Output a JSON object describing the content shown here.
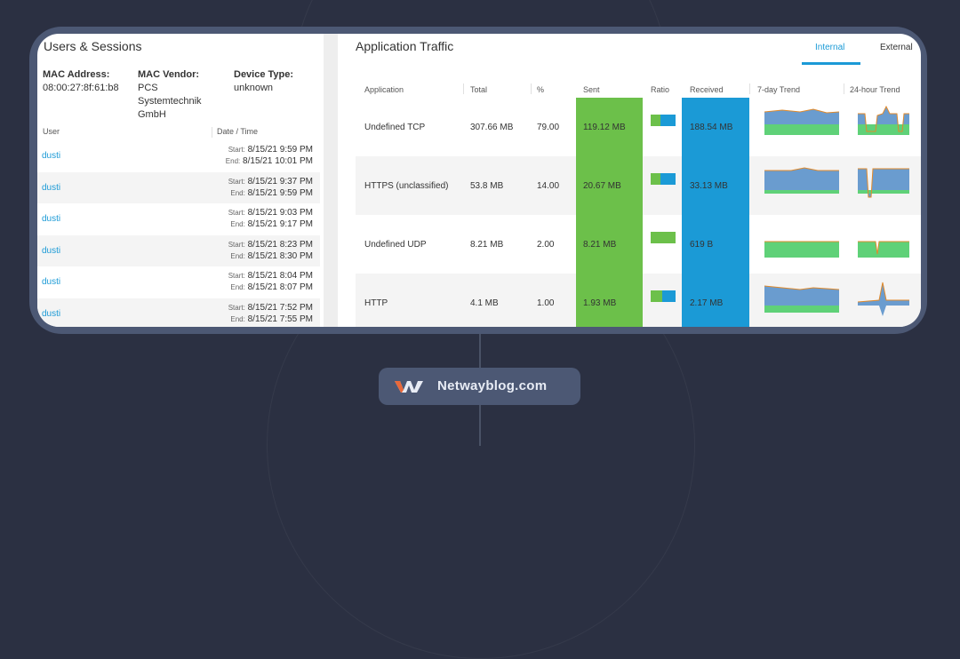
{
  "colors": {
    "accent": "#1b9ad6",
    "sent": "#6cc04a",
    "received": "#1b9ad6",
    "page_bg": "#2b3042"
  },
  "users_sessions": {
    "title": "Users & Sessions",
    "mac_address_label": "MAC Address:",
    "mac_address_value": "08:00:27:8f:61:b8",
    "mac_vendor_label": "MAC Vendor:",
    "mac_vendor_value_1": "PCS",
    "mac_vendor_value_2": "Systemtechnik",
    "mac_vendor_value_3": "GmbH",
    "device_type_label": "Device Type:",
    "device_type_value": "unknown",
    "col_user": "User",
    "col_datetime": "Date / Time",
    "start_label": "Start:",
    "end_label": "End:",
    "sessions": [
      {
        "user": "dusti",
        "start": "8/15/21 9:59 PM",
        "end": "8/15/21 10:01 PM"
      },
      {
        "user": "dusti",
        "start": "8/15/21 9:37 PM",
        "end": "8/15/21 9:59 PM"
      },
      {
        "user": "dusti",
        "start": "8/15/21 9:03 PM",
        "end": "8/15/21 9:17 PM"
      },
      {
        "user": "dusti",
        "start": "8/15/21 8:23 PM",
        "end": "8/15/21 8:30 PM"
      },
      {
        "user": "dusti",
        "start": "8/15/21 8:04 PM",
        "end": "8/15/21 8:07 PM"
      },
      {
        "user": "dusti",
        "start": "8/15/21 7:52 PM",
        "end": "8/15/21 7:55 PM"
      }
    ]
  },
  "app_traffic": {
    "title": "Application Traffic",
    "tabs": [
      "Internal",
      "External"
    ],
    "active_tab": "Internal",
    "headers": {
      "application": "Application",
      "total": "Total",
      "pct": "%",
      "sent": "Sent",
      "ratio": "Ratio",
      "received": "Received",
      "trend7": "7-day Trend",
      "trend24": "24-hour Trend"
    },
    "rows": [
      {
        "application": "Undefined TCP",
        "total": "307.66 MB",
        "pct": "79.00",
        "sent": "119.12 MB",
        "received": "188.54 MB",
        "sent_fraction": 0.39
      },
      {
        "application": "HTTPS (unclassified)",
        "total": "53.8 MB",
        "pct": "14.00",
        "sent": "20.67 MB",
        "received": "33.13 MB",
        "sent_fraction": 0.38
      },
      {
        "application": "Undefined UDP",
        "total": "8.21 MB",
        "pct": "2.00",
        "sent": "8.21 MB",
        "received": "619 B",
        "sent_fraction": 1.0
      },
      {
        "application": "HTTP",
        "total": "4.1 MB",
        "pct": "1.00",
        "sent": "1.93 MB",
        "received": "2.17 MB",
        "sent_fraction": 0.47
      }
    ]
  },
  "footer": {
    "brand": "Netwayblog.com",
    "logo_icon": "netway-logo-icon"
  }
}
